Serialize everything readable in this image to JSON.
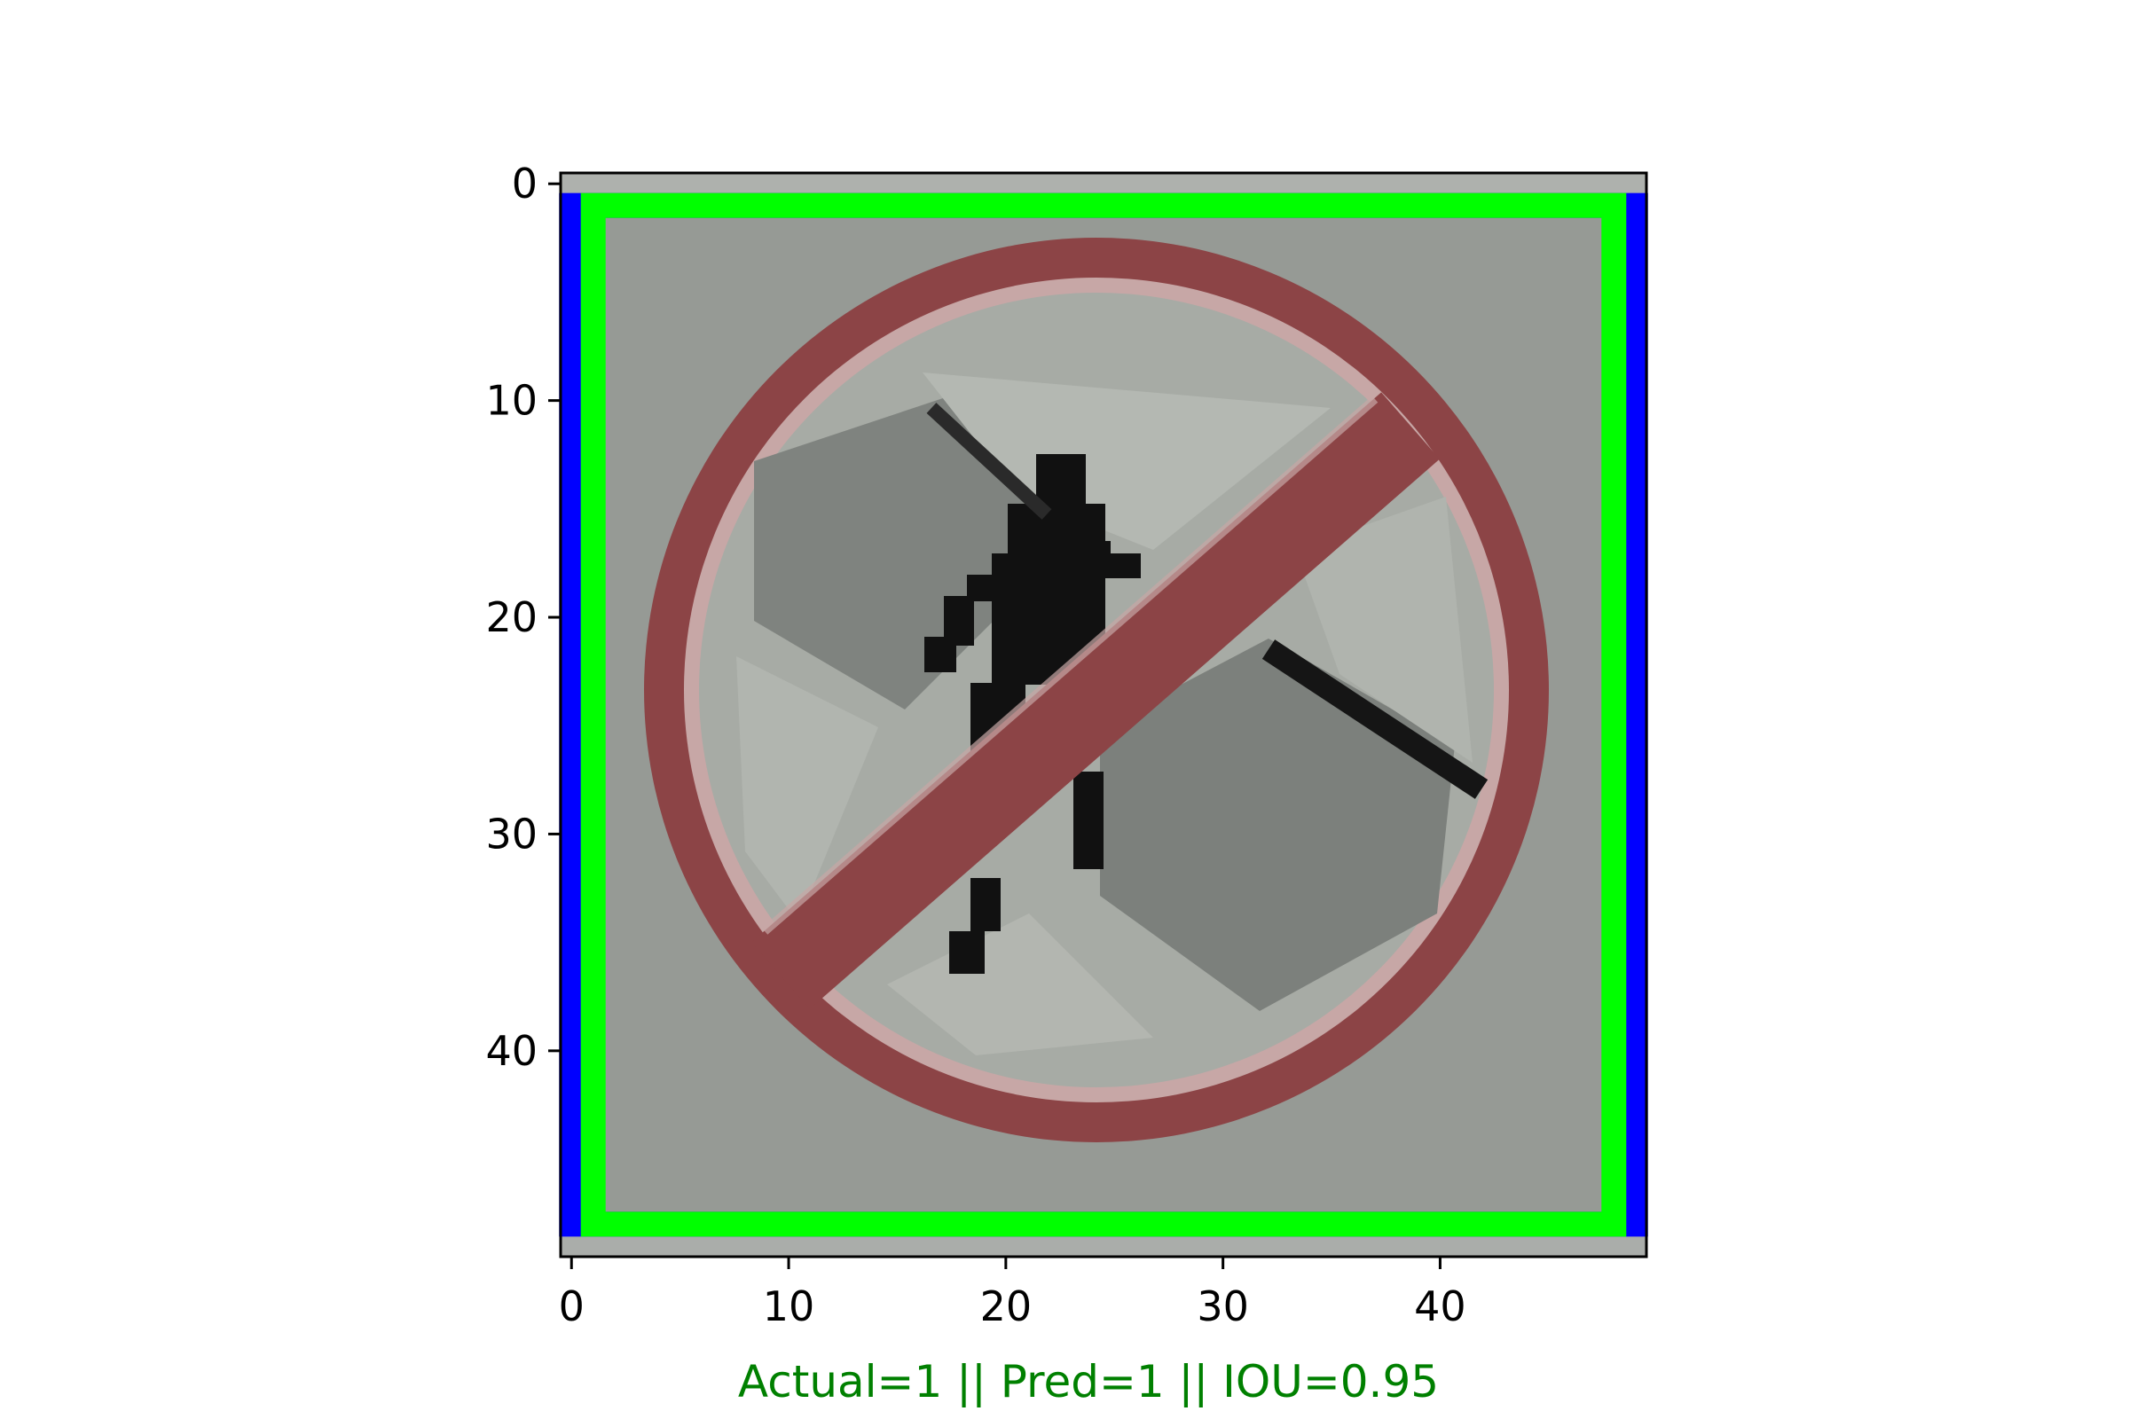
{
  "image": {
    "description_kind": "pixelated traffic sign crop with bounding boxes",
    "pixel_grid": [
      49,
      49
    ],
    "background_color": "#9da09b",
    "sign_ring_color": "#8c4446",
    "sign_inner_color": "#a8aca6",
    "figure_color": "#111111"
  },
  "axes": {
    "x_ticks": [
      "0",
      "10",
      "20",
      "30",
      "40"
    ],
    "y_ticks": [
      "0",
      "10",
      "20",
      "30",
      "40"
    ],
    "xlim": [
      -0.5,
      49.5
    ],
    "ylim": [
      49.5,
      -0.5
    ]
  },
  "boxes": {
    "actual": {
      "color": "#0000ff",
      "x1": 0,
      "y1": 1,
      "x2": 49,
      "y2": 48
    },
    "predicted": {
      "color": "#00ff00",
      "x1": 1,
      "y1": 1,
      "x2": 48,
      "y2": 48
    }
  },
  "caption": {
    "text": "Actual=1 || Pred=1 || IOU=0.95",
    "color": "#008000"
  }
}
